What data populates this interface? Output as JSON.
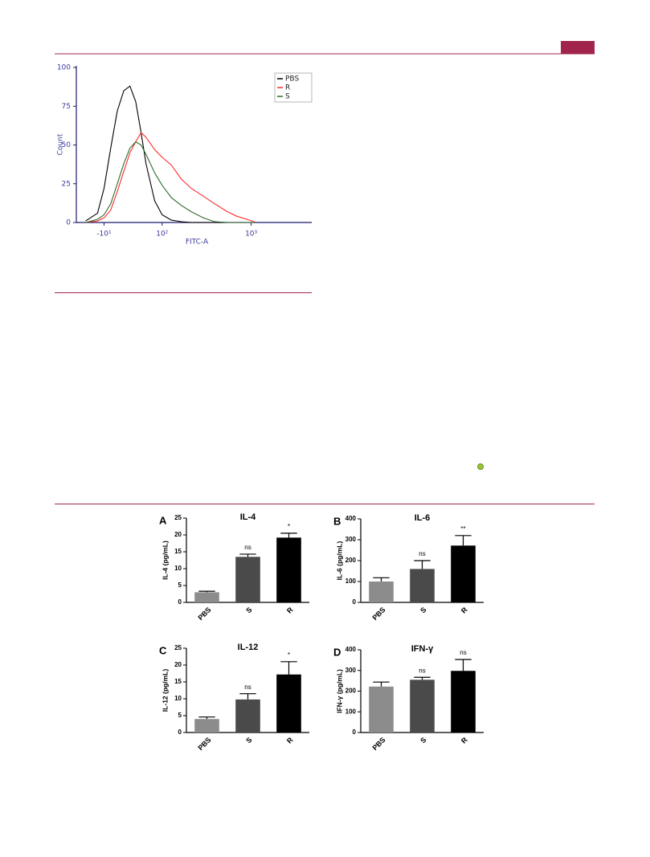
{
  "chart_data": [
    {
      "type": "line",
      "y_label": "Count",
      "x_label": "FITC-A",
      "xscale": "biexponential",
      "legend": "upper right",
      "x": [
        -40,
        -20,
        -10,
        0,
        10,
        20,
        30,
        40,
        50,
        60,
        80,
        100,
        130,
        170,
        220,
        300,
        400,
        550,
        700,
        900,
        1100
      ],
      "series": [
        {
          "name": "PBS",
          "color": "#000000",
          "values": [
            1,
            6,
            22,
            48,
            72,
            85,
            88,
            78,
            58,
            38,
            14,
            5,
            1.5,
            0.5,
            0,
            0,
            0,
            0,
            0,
            0,
            0
          ]
        },
        {
          "name": "R",
          "color": "#ff2a2a",
          "values": [
            0,
            1,
            3,
            8,
            20,
            33,
            45,
            52,
            58,
            55,
            47,
            42,
            37,
            28,
            22,
            17,
            12,
            7,
            4,
            2,
            0.3
          ]
        },
        {
          "name": "S",
          "color": "#2e6b2e",
          "values": [
            0,
            2,
            5,
            12,
            25,
            38,
            48,
            52,
            50,
            44,
            32,
            24,
            16,
            11,
            7,
            3,
            0.5,
            0,
            0,
            0,
            0
          ]
        }
      ],
      "xlim": [
        -58,
        4540
      ],
      "xticks": [
        {
          "value": -10,
          "label": "-10¹"
        },
        {
          "value": 100,
          "label": "10²"
        },
        {
          "value": 1000,
          "label": "10³"
        }
      ],
      "ylim": [
        0,
        100
      ],
      "yticks": [
        0,
        25,
        50,
        75,
        100
      ]
    },
    {
      "type": "bar",
      "panel": "A",
      "title": "IL-4",
      "y_label": "IL-4 (pg/mL)",
      "categories": [
        "PBS",
        "S",
        "R"
      ],
      "values": [
        3,
        13.5,
        19.2
      ],
      "errors": [
        0.3,
        0.8,
        1.3
      ],
      "annotations": [
        null,
        "ns",
        "*"
      ],
      "colors": [
        "#8c8c8c",
        "#4a4a4a",
        "#000000"
      ],
      "ylim": [
        0,
        25
      ],
      "yticks": [
        0,
        5,
        10,
        15,
        20,
        25
      ]
    },
    {
      "type": "bar",
      "panel": "B",
      "title": "IL-6",
      "y_label": "IL-6 (pg/mL)",
      "categories": [
        "PBS",
        "S",
        "R"
      ],
      "values": [
        100,
        160,
        272
      ],
      "errors": [
        18,
        40,
        48
      ],
      "annotations": [
        null,
        "ns",
        "**"
      ],
      "colors": [
        "#8c8c8c",
        "#4a4a4a",
        "#000000"
      ],
      "ylim": [
        0,
        400
      ],
      "yticks": [
        0,
        100,
        200,
        300,
        400
      ]
    },
    {
      "type": "bar",
      "panel": "C",
      "title": "IL-12",
      "y_label": "IL-12 (pg/mL)",
      "categories": [
        "PBS",
        "S",
        "R"
      ],
      "values": [
        4,
        9.8,
        17.2
      ],
      "errors": [
        0.6,
        1.7,
        3.8
      ],
      "annotations": [
        null,
        "ns",
        "*"
      ],
      "colors": [
        "#8c8c8c",
        "#4a4a4a",
        "#000000"
      ],
      "ylim": [
        0,
        25
      ],
      "yticks": [
        0,
        5,
        10,
        15,
        20,
        25
      ]
    },
    {
      "type": "bar",
      "panel": "D",
      "title": "IFN-γ",
      "y_label": "IFN-γ (pg/mL)",
      "categories": [
        "PBS",
        "S",
        "R"
      ],
      "values": [
        222,
        255,
        298
      ],
      "errors": [
        22,
        12,
        55
      ],
      "annotations": [
        null,
        "ns",
        "ns"
      ],
      "colors": [
        "#8c8c8c",
        "#4a4a4a",
        "#000000"
      ],
      "ylim": [
        0,
        400
      ],
      "yticks": [
        0,
        100,
        200,
        300,
        400
      ]
    }
  ]
}
